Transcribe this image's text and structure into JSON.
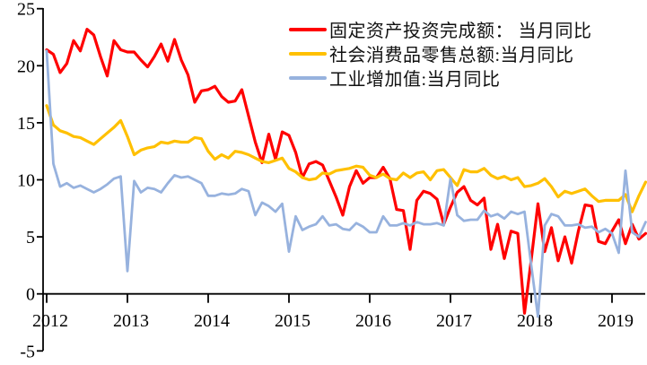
{
  "chart_data": {
    "type": "line",
    "title": "",
    "xlabel": "",
    "ylabel": "",
    "x_start": "2012-01",
    "x_end": "2019-06",
    "x_frequency": "monthly",
    "x_tick_labels": [
      "2012",
      "2013",
      "2014",
      "2015",
      "2016",
      "2017",
      "2018",
      "2019"
    ],
    "y_ticks": [
      25,
      20,
      15,
      10,
      5,
      0,
      -5
    ],
    "ylim": [
      -5,
      25
    ],
    "grid": false,
    "legend_position": "top-right",
    "axis_color": "#000000",
    "series": [
      {
        "name": "固定资产投资完成额： 当月同比",
        "color": "#FF0000",
        "stroke_width": 3.2,
        "values": [
          21.4,
          21.0,
          19.4,
          20.2,
          22.2,
          21.3,
          23.2,
          22.7,
          20.8,
          19.1,
          22.2,
          21.4,
          21.2,
          21.2,
          20.5,
          19.9,
          20.8,
          21.9,
          20.4,
          22.3,
          20.5,
          19.2,
          16.8,
          17.8,
          17.9,
          18.2,
          17.3,
          16.8,
          16.9,
          17.9,
          15.6,
          13.3,
          11.5,
          14.0,
          11.8,
          14.2,
          13.9,
          12.4,
          10.2,
          11.4,
          11.6,
          11.3,
          9.9,
          8.5,
          6.9,
          9.4,
          10.8,
          9.7,
          10.2,
          10.2,
          11.1,
          10.1,
          7.4,
          7.3,
          3.9,
          8.2,
          9.0,
          8.8,
          8.3,
          6.1,
          7.6,
          8.9,
          9.4,
          8.2,
          7.8,
          8.4,
          3.9,
          6.1,
          3.1,
          5.5,
          5.3,
          -1.7,
          3.0,
          7.9,
          3.7,
          5.8,
          2.9,
          5.0,
          2.7,
          5.5,
          7.8,
          7.7,
          4.6,
          4.4,
          5.5,
          6.5,
          4.4,
          6.1,
          4.8,
          5.3
        ]
      },
      {
        "name": "社会消费品零售总额:当月同比",
        "color": "#FFC000",
        "stroke_width": 3.2,
        "values": [
          16.5,
          14.8,
          14.3,
          14.1,
          13.8,
          13.7,
          13.4,
          13.1,
          13.6,
          14.1,
          14.6,
          15.2,
          13.8,
          12.2,
          12.6,
          12.8,
          12.9,
          13.3,
          13.2,
          13.4,
          13.3,
          13.3,
          13.7,
          13.6,
          12.5,
          11.8,
          12.2,
          11.9,
          12.5,
          12.4,
          12.2,
          11.9,
          11.6,
          11.5,
          11.7,
          11.9,
          11.0,
          10.7,
          10.2,
          10.0,
          10.1,
          10.6,
          10.5,
          10.8,
          10.9,
          11.0,
          11.2,
          11.1,
          10.4,
          10.2,
          10.5,
          10.1,
          10.0,
          10.6,
          10.2,
          10.6,
          10.7,
          10.0,
          10.8,
          10.9,
          10.2,
          9.5,
          10.9,
          10.7,
          10.7,
          11.0,
          10.4,
          10.1,
          10.3,
          10.0,
          10.2,
          9.4,
          9.5,
          9.7,
          10.1,
          9.4,
          8.5,
          9.0,
          8.8,
          9.0,
          9.2,
          8.6,
          8.1,
          8.2,
          8.2,
          8.2,
          8.7,
          7.2,
          8.6,
          9.8
        ]
      },
      {
        "name": "工业增加值:当月同比",
        "color": "#97B2DE",
        "stroke_width": 2.8,
        "values": [
          21.3,
          11.4,
          9.4,
          9.7,
          9.3,
          9.5,
          9.2,
          8.9,
          9.2,
          9.6,
          10.1,
          10.3,
          2.0,
          9.9,
          8.9,
          9.3,
          9.2,
          8.9,
          9.7,
          10.4,
          10.2,
          10.3,
          10.0,
          9.7,
          8.6,
          8.6,
          8.8,
          8.7,
          8.8,
          9.2,
          9.0,
          6.9,
          8.0,
          7.7,
          7.2,
          7.9,
          3.7,
          6.8,
          5.6,
          5.9,
          6.1,
          6.8,
          6.0,
          6.1,
          5.7,
          5.6,
          6.2,
          5.9,
          5.4,
          5.4,
          6.8,
          6.0,
          6.0,
          6.2,
          6.0,
          6.3,
          6.1,
          6.1,
          6.2,
          6.0,
          10.1,
          6.9,
          6.4,
          6.5,
          6.5,
          7.3,
          6.8,
          7.0,
          6.6,
          7.2,
          7.0,
          7.2,
          2.5,
          -2.0,
          6.0,
          7.0,
          6.8,
          6.0,
          6.0,
          6.1,
          5.8,
          5.9,
          5.4,
          5.7,
          5.3,
          3.6,
          10.8,
          5.4,
          5.0,
          6.3
        ]
      }
    ]
  }
}
